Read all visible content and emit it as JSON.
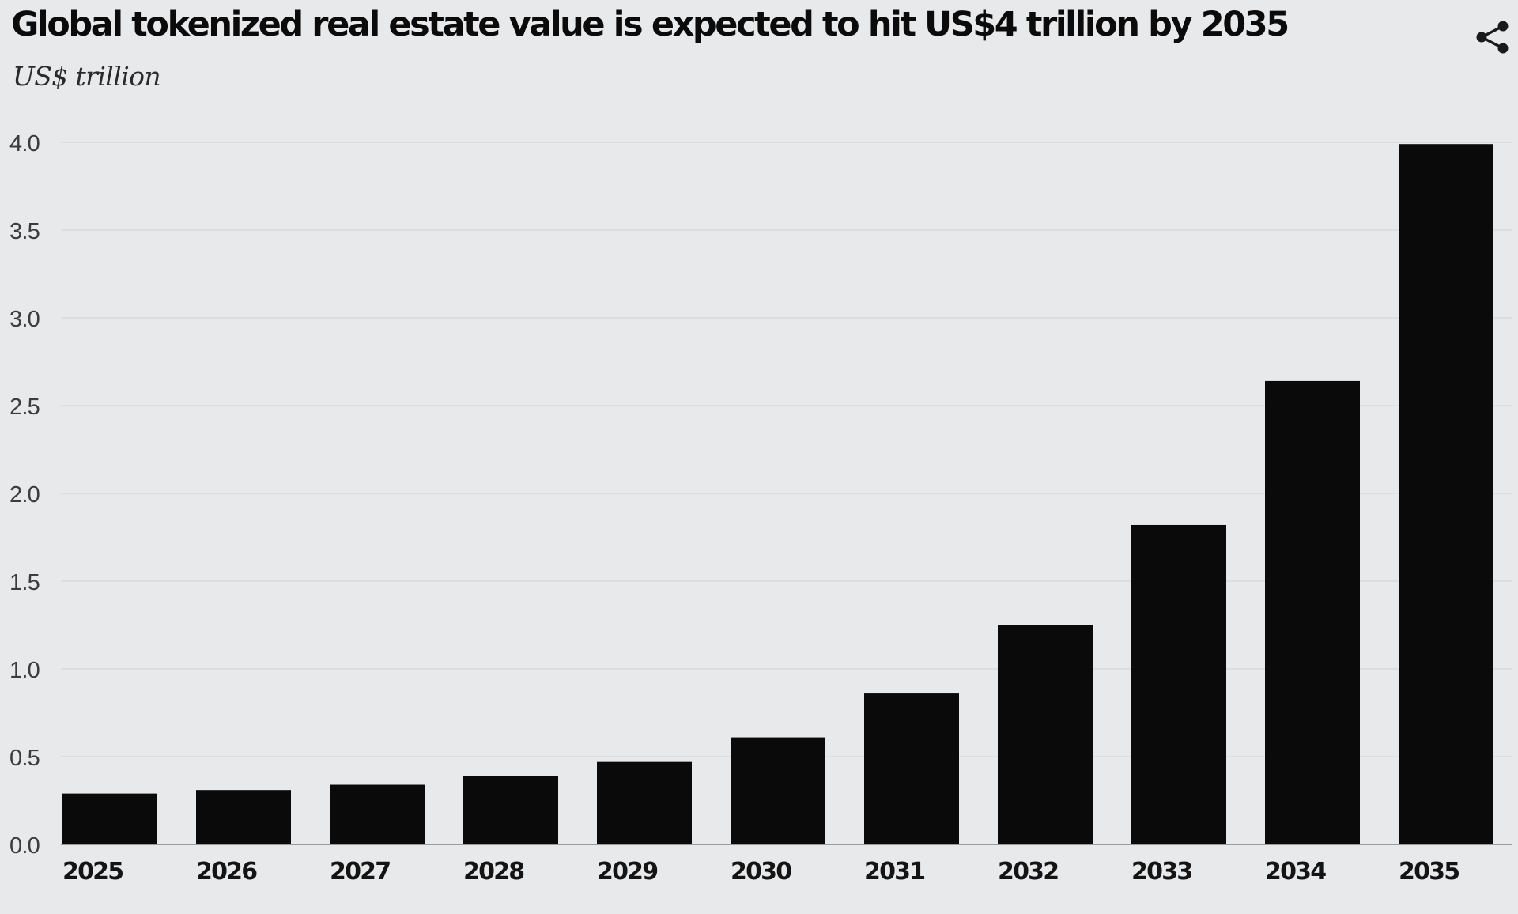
{
  "chart_data": {
    "type": "bar",
    "title": "Global tokenized real estate value is expected to hit US$4 trillion by 2035",
    "subtitle": "US$ trillion",
    "xlabel": "",
    "ylabel": "",
    "categories": [
      "2025",
      "2026",
      "2027",
      "2028",
      "2029",
      "2030",
      "2031",
      "2032",
      "2033",
      "2034",
      "2035"
    ],
    "values": [
      0.29,
      0.31,
      0.34,
      0.39,
      0.47,
      0.61,
      0.86,
      1.25,
      1.82,
      2.64,
      3.99
    ],
    "ylim": [
      0,
      4.0
    ],
    "yticks": [
      "0.0",
      "0.5",
      "1.0",
      "1.5",
      "2.0",
      "2.5",
      "3.0",
      "3.5",
      "4.0"
    ],
    "grid": true,
    "bar_color": "#0a0a0a",
    "grid_color": "#dcdddf",
    "background_color": "#e8e9eb"
  },
  "toolbar": {
    "share_icon": "share-icon"
  }
}
